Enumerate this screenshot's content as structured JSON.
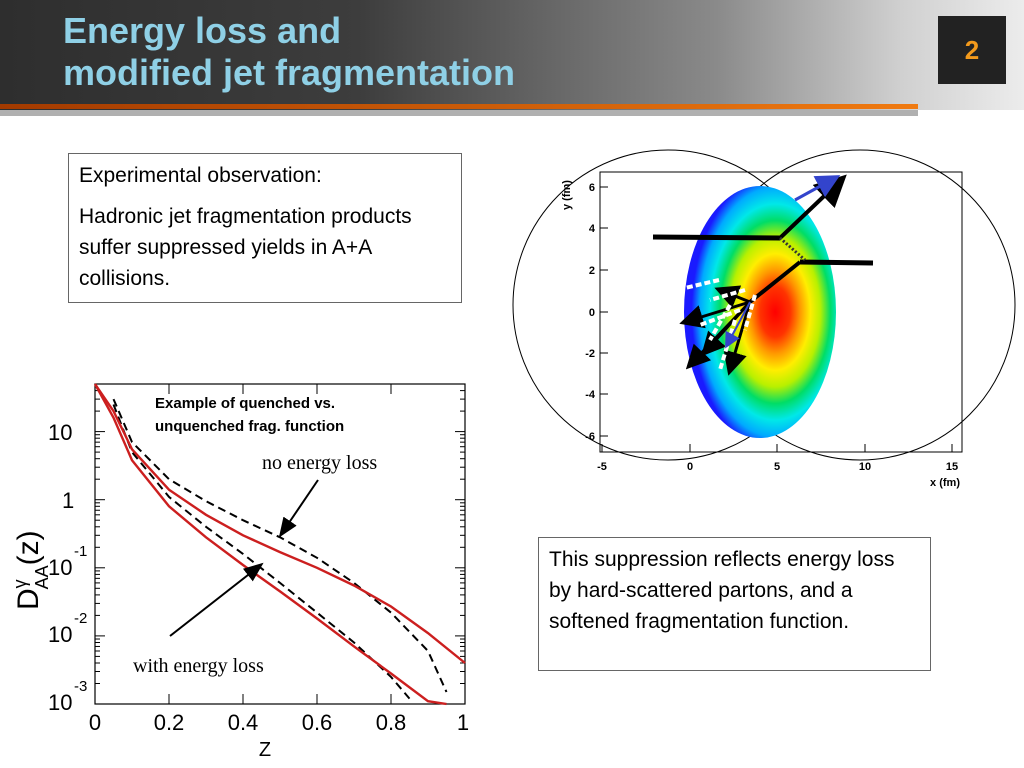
{
  "slide": {
    "title_line1": "Energy loss and",
    "title_line2": "modified jet fragmentation",
    "number": "2"
  },
  "observation_box": {
    "heading": "Experimental observation:",
    "body": "Hadronic jet fragmentation products suffer suppressed yields in A+A collisions."
  },
  "conclusion_box": {
    "body": "This suppression reflects energy loss by hard-scattered partons, and a softened fragmentation function."
  },
  "frag_plot": {
    "note_line1": "Example of quenched vs.",
    "note_line2": "unquenched frag. function",
    "label_no_loss": "no energy loss",
    "label_with_loss": "with energy loss",
    "ylabel": "D",
    "ylabel_sup": "γ",
    "ylabel_sub": "AA",
    "ylabel_arg": "(z)",
    "xlabel": "Z",
    "x_ticks": [
      "0",
      "0.2",
      "0.4",
      "0.6",
      "0.8",
      "1"
    ],
    "y_ticks": [
      {
        "base": "10",
        "exp": ""
      },
      {
        "base": "1",
        "exp": ""
      },
      {
        "base": "10",
        "exp": "-1"
      },
      {
        "base": "10",
        "exp": "-2"
      },
      {
        "base": "10",
        "exp": "-3"
      }
    ]
  },
  "collision_plot": {
    "xlabel": "x (fm)",
    "ylabel": "y (fm)",
    "x_ticks": [
      "-5",
      "0",
      "5",
      "10",
      "15"
    ],
    "y_ticks": [
      "6",
      "4",
      "2",
      "0",
      "-2",
      "-4",
      "-6"
    ]
  },
  "chart_data": [
    {
      "type": "line",
      "title": "Example of quenched vs. unquenched frag. function",
      "xlabel": "Z",
      "ylabel": "D^γ_AA(z)",
      "xlim": [
        0,
        1
      ],
      "ylim": [
        0.001,
        50
      ],
      "yscale": "log",
      "series": [
        {
          "name": "no energy loss",
          "style": "dashed",
          "x": [
            0.05,
            0.1,
            0.2,
            0.3,
            0.4,
            0.5,
            0.6,
            0.7,
            0.8,
            0.9,
            0.95
          ],
          "y": [
            30,
            7,
            2.0,
            0.95,
            0.5,
            0.28,
            0.14,
            0.06,
            0.022,
            0.006,
            0.0015
          ]
        },
        {
          "name": "with energy loss",
          "style": "dashed",
          "x": [
            0.05,
            0.1,
            0.2,
            0.3,
            0.4,
            0.5,
            0.6,
            0.7,
            0.8,
            0.85
          ],
          "y": [
            25,
            5,
            1.1,
            0.4,
            0.16,
            0.06,
            0.022,
            0.008,
            0.0025,
            0.0012
          ]
        },
        {
          "style": "solid-red",
          "x": [
            0.0,
            0.05,
            0.1,
            0.2,
            0.3,
            0.4,
            0.5,
            0.6,
            0.7,
            0.8,
            0.9,
            1.0
          ],
          "y": [
            50,
            20,
            5.5,
            1.4,
            0.6,
            0.3,
            0.17,
            0.1,
            0.055,
            0.027,
            0.011,
            0.004
          ]
        },
        {
          "style": "solid-red",
          "x": [
            0.0,
            0.05,
            0.1,
            0.2,
            0.3,
            0.4,
            0.5,
            0.6,
            0.7,
            0.8,
            0.9,
            0.95
          ],
          "y": [
            50,
            16,
            3.8,
            0.8,
            0.28,
            0.11,
            0.045,
            0.018,
            0.007,
            0.0028,
            0.0011,
            0.0007
          ]
        }
      ],
      "colors": {
        "solid": "#cc1f1f",
        "dashed": "#000000"
      }
    },
    {
      "type": "heatmap",
      "xlabel": "x (fm)",
      "ylabel": "y (fm)",
      "xlim": [
        -5,
        15
      ],
      "ylim": [
        -7,
        7
      ],
      "colormap": [
        "#1a1aff",
        "#00aaff",
        "#00e8e8",
        "#00dd66",
        "#b8f000",
        "#ffee00",
        "#ff9900",
        "#ff3300",
        "#ff0000"
      ],
      "description_free": true
    }
  ]
}
